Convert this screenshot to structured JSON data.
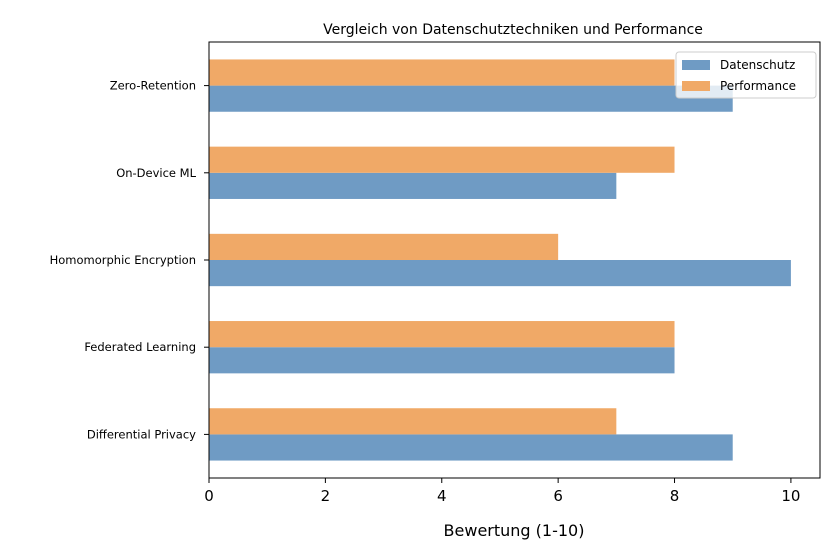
{
  "chart_data": {
    "type": "bar",
    "orientation": "horizontal",
    "title": "Vergleich von Datenschutztechniken und Performance",
    "xlabel": "Bewertung (1-10)",
    "ylabel": "",
    "categories": [
      "Differential Privacy",
      "Federated Learning",
      "Homomorphic Encryption",
      "On-Device ML",
      "Zero-Retention"
    ],
    "series": [
      {
        "name": "Datenschutz",
        "color": "#6f9bc4",
        "values": [
          9,
          8,
          10,
          7,
          9
        ]
      },
      {
        "name": "Performance",
        "color": "#f0a967",
        "values": [
          7,
          8,
          6,
          8,
          8
        ]
      }
    ],
    "xlim": [
      0,
      10.5
    ],
    "xticks": [
      0,
      2,
      4,
      6,
      8,
      10
    ],
    "grid": false,
    "legend_position": "top-right"
  }
}
